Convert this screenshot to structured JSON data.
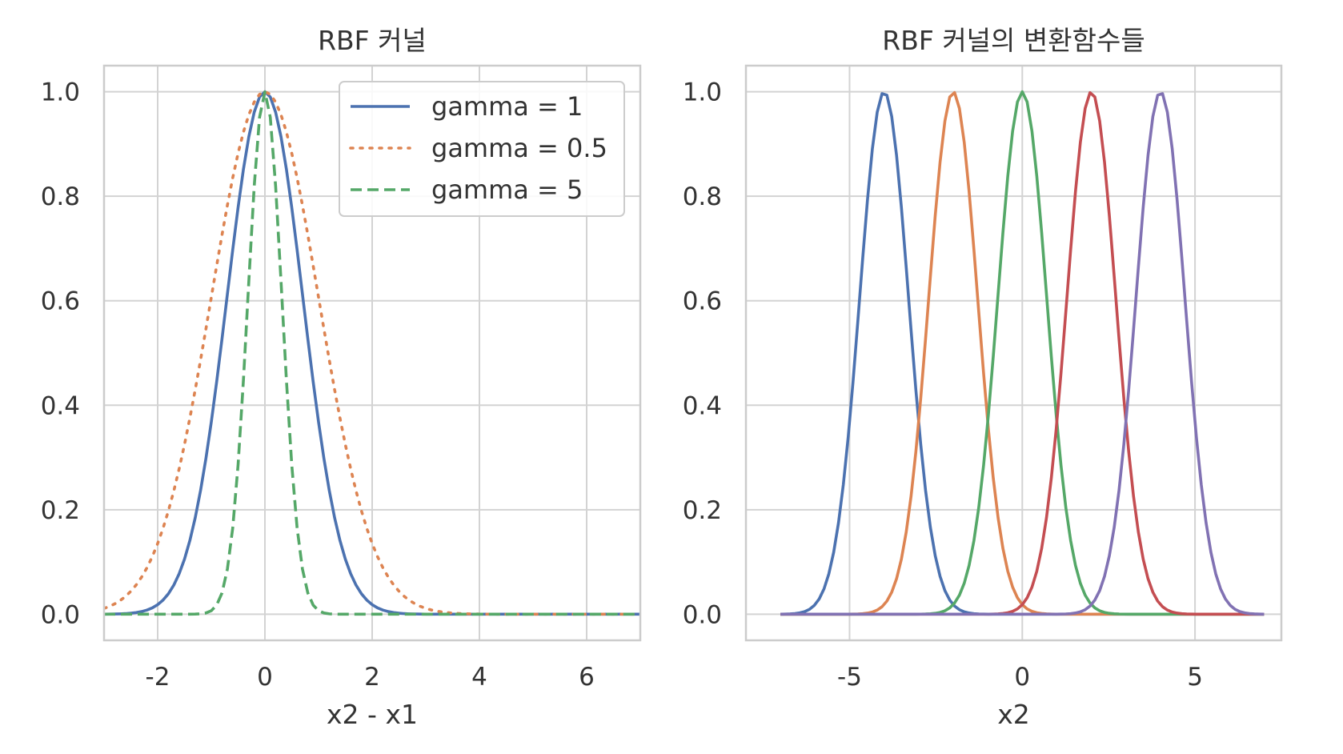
{
  "chart_data": [
    {
      "type": "line",
      "title": "RBF 커널",
      "xlabel": "x2 - x1",
      "ylabel": "",
      "xlim": [
        -3,
        7
      ],
      "ylim": [
        -0.05,
        1.05
      ],
      "xticks": [
        -2,
        0,
        2,
        4,
        6
      ],
      "xtick_labels": [
        "-2",
        "0",
        "2",
        "4",
        "6"
      ],
      "yticks": [
        0,
        0.2,
        0.4,
        0.6,
        0.8,
        1.0
      ],
      "ytick_labels": [
        "0.0",
        "0.2",
        "0.4",
        "0.6",
        "0.8",
        "1.0"
      ],
      "grid": true,
      "legend": "top-right",
      "x_range": [
        -3,
        7
      ],
      "series": [
        {
          "name": "gamma = 1",
          "formula": "exp(-1*x^2)",
          "gamma": 1,
          "center": 0,
          "color": "#4c72b0",
          "dash": "solid"
        },
        {
          "name": "gamma = 0.5",
          "formula": "exp(-0.5*x^2)",
          "gamma": 0.5,
          "center": 0,
          "color": "#dd8452",
          "dash": "dotted"
        },
        {
          "name": "gamma = 5",
          "formula": "exp(-5*x^2)",
          "gamma": 5,
          "center": 0,
          "color": "#55a868",
          "dash": "dashed"
        }
      ]
    },
    {
      "type": "line",
      "title": "RBF 커널의 변환함수들",
      "xlabel": "x2",
      "ylabel": "",
      "xlim": [
        -8,
        7.5
      ],
      "ylim": [
        -0.05,
        1.05
      ],
      "xticks": [
        -5,
        0,
        5
      ],
      "xtick_labels": [
        "-5",
        "0",
        "5"
      ],
      "yticks": [
        0,
        0.2,
        0.4,
        0.6,
        0.8,
        1.0
      ],
      "ytick_labels": [
        "0.0",
        "0.2",
        "0.4",
        "0.6",
        "0.8",
        "1.0"
      ],
      "grid": true,
      "x_range": [
        -7,
        7
      ],
      "series": [
        {
          "center": -4,
          "gamma": 1,
          "formula": "exp(-(x+4)^2)",
          "color": "#4c72b0"
        },
        {
          "center": -2,
          "gamma": 1,
          "formula": "exp(-(x+2)^2)",
          "color": "#dd8452"
        },
        {
          "center": 0,
          "gamma": 1,
          "formula": "exp(-x^2)",
          "color": "#55a868"
        },
        {
          "center": 2,
          "gamma": 1,
          "formula": "exp(-(x-2)^2)",
          "color": "#c44e52"
        },
        {
          "center": 4,
          "gamma": 1,
          "formula": "exp(-(x-4)^2)",
          "color": "#8172b3"
        }
      ]
    }
  ]
}
